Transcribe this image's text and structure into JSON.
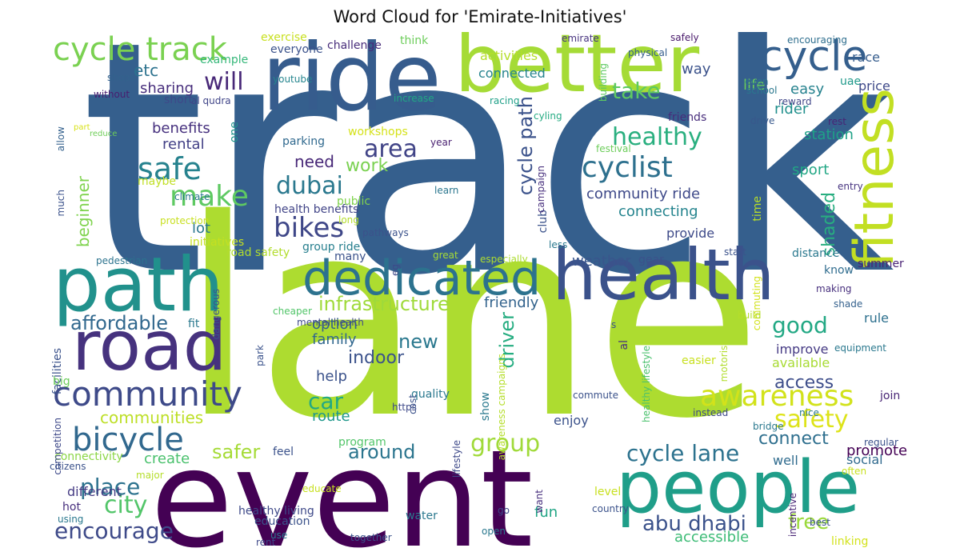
{
  "title": "Word Cloud for 'Emirate-Initiatives'",
  "words": [
    {
      "text": "track",
      "color": "#355f8d"
    },
    {
      "text": "lane",
      "color": "#addc30"
    },
    {
      "text": "event",
      "color": "#440154"
    },
    {
      "text": "ride",
      "color": "#365c8d"
    },
    {
      "text": "better",
      "color": "#a5db36"
    },
    {
      "text": "path",
      "color": "#21918c"
    },
    {
      "text": "health",
      "color": "#3b528b"
    },
    {
      "text": "road",
      "color": "#46327e"
    },
    {
      "text": "people",
      "color": "#1f9e89"
    },
    {
      "text": "fitness",
      "color": "#c2df23"
    },
    {
      "text": "dedicated",
      "color": "#2c728e"
    },
    {
      "text": "cycle",
      "color": "#355f8d"
    },
    {
      "text": "cycle track",
      "color": "#7ad151"
    },
    {
      "text": "community",
      "color": "#3e4a89"
    },
    {
      "text": "bicycle",
      "color": "#31688e"
    },
    {
      "text": "awareness",
      "color": "#d2e21b"
    },
    {
      "text": "safe",
      "color": "#26828e"
    },
    {
      "text": "make",
      "color": "#5ec962"
    },
    {
      "text": "bikes",
      "color": "#3f4788"
    },
    {
      "text": "cyclist",
      "color": "#2d708e"
    },
    {
      "text": "area",
      "color": "#414487"
    },
    {
      "text": "healthy",
      "color": "#29af7f"
    },
    {
      "text": "dubai",
      "color": "#2a788e"
    },
    {
      "text": "will",
      "color": "#482878"
    },
    {
      "text": "take",
      "color": "#5ec962"
    },
    {
      "text": "safety",
      "color": "#dde318"
    },
    {
      "text": "city",
      "color": "#52c569"
    },
    {
      "text": "group",
      "color": "#a0da39"
    },
    {
      "text": "place",
      "color": "#2c728e"
    },
    {
      "text": "encourage",
      "color": "#3e4a89"
    },
    {
      "text": "cycle lane",
      "color": "#2c728e"
    },
    {
      "text": "abu dhabi",
      "color": "#3b528b"
    },
    {
      "text": "free",
      "color": "#9bd93c"
    },
    {
      "text": "good",
      "color": "#22a884"
    },
    {
      "text": "cycle path",
      "color": "#3b528b"
    },
    {
      "text": "infrastructure",
      "color": "#9fda3a"
    },
    {
      "text": "car",
      "color": "#23a983"
    },
    {
      "text": "affordable",
      "color": "#31688e"
    },
    {
      "text": "communities",
      "color": "#bddf26"
    },
    {
      "text": "safer",
      "color": "#a5db36"
    },
    {
      "text": "around",
      "color": "#2b758e"
    },
    {
      "text": "new",
      "color": "#2a788e"
    },
    {
      "text": "driver",
      "color": "#26ad81"
    },
    {
      "text": "indoor",
      "color": "#3b528b"
    },
    {
      "text": "work",
      "color": "#7ad151"
    },
    {
      "text": "need",
      "color": "#482878"
    },
    {
      "text": "etc",
      "color": "#2c728e"
    },
    {
      "text": "beginner",
      "color": "#7fd34e"
    },
    {
      "text": "shaded",
      "color": "#28ae80"
    },
    {
      "text": "connect",
      "color": "#2e6f8e"
    },
    {
      "text": "access",
      "color": "#3d4d8a"
    },
    {
      "text": "community ride",
      "color": "#3e4989"
    },
    {
      "text": "connecting",
      "color": "#25848e"
    },
    {
      "text": "sport",
      "color": "#22a785"
    },
    {
      "text": "station",
      "color": "#1fa187"
    },
    {
      "text": "weather",
      "color": "#39558c"
    },
    {
      "text": "friendly",
      "color": "#33638d"
    },
    {
      "text": "rental",
      "color": "#424086"
    },
    {
      "text": "benefits",
      "color": "#46307e"
    },
    {
      "text": "sharing",
      "color": "#472e7c"
    },
    {
      "text": "lot",
      "color": "#2a778e"
    },
    {
      "text": "route",
      "color": "#1f978b"
    },
    {
      "text": "option",
      "color": "#34608d"
    },
    {
      "text": "family",
      "color": "#31678e"
    },
    {
      "text": "help",
      "color": "#3b528b"
    },
    {
      "text": "fun",
      "color": "#21a585"
    },
    {
      "text": "accessible",
      "color": "#3bbb75"
    },
    {
      "text": "create",
      "color": "#4ac16d"
    },
    {
      "text": "connectivity",
      "color": "#8bd646"
    },
    {
      "text": "different",
      "color": "#443a83"
    },
    {
      "text": "enjoy",
      "color": "#3b528b"
    },
    {
      "text": "well",
      "color": "#2f6b8e"
    },
    {
      "text": "promote",
      "color": "#440154"
    },
    {
      "text": "social",
      "color": "#306a8e"
    },
    {
      "text": "way",
      "color": "#3b528b"
    },
    {
      "text": "life",
      "color": "#6ccd5a"
    },
    {
      "text": "easy",
      "color": "#26828e"
    },
    {
      "text": "rider",
      "color": "#21908d"
    },
    {
      "text": "price",
      "color": "#3e4989"
    },
    {
      "text": "uae",
      "color": "#1f998a"
    },
    {
      "text": "race",
      "color": "#365d8d"
    },
    {
      "text": "provide",
      "color": "#3e4a89"
    },
    {
      "text": "rule",
      "color": "#2d708e"
    },
    {
      "text": "improve",
      "color": "#443983"
    },
    {
      "text": "available",
      "color": "#a8db34"
    },
    {
      "text": "join",
      "color": "#482475"
    },
    {
      "text": "know",
      "color": "#2f6c8e"
    },
    {
      "text": "summer",
      "color": "#482173"
    },
    {
      "text": "connected",
      "color": "#25838e"
    },
    {
      "text": "activities",
      "color": "#b5de2b"
    },
    {
      "text": "exercise",
      "color": "#c8e020"
    },
    {
      "text": "one",
      "color": "#20928c"
    },
    {
      "text": "maybe",
      "color": "#c0df25"
    },
    {
      "text": "health benefits",
      "color": "#414487"
    },
    {
      "text": "group ride",
      "color": "#277f8e"
    },
    {
      "text": "road safety",
      "color": "#b2dd2d"
    },
    {
      "text": "initiatives",
      "color": "#c5e021"
    },
    {
      "text": "public",
      "color": "#81d34d"
    },
    {
      "text": "club",
      "color": "#3b528b"
    },
    {
      "text": "time",
      "color": "#b8de29"
    },
    {
      "text": "friends",
      "color": "#472d7b"
    },
    {
      "text": "parking",
      "color": "#30698e"
    },
    {
      "text": "workshops",
      "color": "#d5e21a"
    },
    {
      "text": "challenge",
      "color": "#472c7a"
    },
    {
      "text": "think",
      "color": "#6ccd5a"
    },
    {
      "text": "example",
      "color": "#35b779"
    },
    {
      "text": "everyone",
      "color": "#3b528b"
    },
    {
      "text": "emirate",
      "color": "#46327e"
    },
    {
      "text": "safely",
      "color": "#48186a"
    },
    {
      "text": "encouraging",
      "color": "#2e6e8e"
    },
    {
      "text": "physical",
      "color": "#355e8d"
    },
    {
      "text": "short",
      "color": "#3e4989"
    },
    {
      "text": "al qudra",
      "color": "#404588"
    },
    {
      "text": "without",
      "color": "#481d6f"
    },
    {
      "text": "shops",
      "color": "#33628d"
    },
    {
      "text": "racing",
      "color": "#1fa088"
    },
    {
      "text": "cyling",
      "color": "#25ab82"
    },
    {
      "text": "even",
      "color": "#2d718e"
    },
    {
      "text": "school",
      "color": "#2a788e"
    },
    {
      "text": "youtube",
      "color": "#25858e"
    },
    {
      "text": "increase",
      "color": "#22a785"
    },
    {
      "text": "building",
      "color": "#5ec962"
    },
    {
      "text": "many",
      "color": "#3b528b"
    },
    {
      "text": "great",
      "color": "#a5db36"
    },
    {
      "text": "especially",
      "color": "#addc30"
    },
    {
      "text": "gear",
      "color": "#3b528b"
    },
    {
      "text": "less",
      "color": "#2a788e"
    },
    {
      "text": "rest",
      "color": "#482475"
    },
    {
      "text": "drive",
      "color": "#38588c"
    },
    {
      "text": "reward",
      "color": "#404688"
    },
    {
      "text": "year",
      "color": "#481f70"
    },
    {
      "text": "festival",
      "color": "#6ccd5a"
    },
    {
      "text": "campaign",
      "color": "#472f7d"
    },
    {
      "text": "entry",
      "color": "#46337f"
    },
    {
      "text": "learn",
      "color": "#2a768e"
    },
    {
      "text": "pathways",
      "color": "#3b528b"
    },
    {
      "text": "long",
      "color": "#b5de2b"
    },
    {
      "text": "protection",
      "color": "#c8e020"
    },
    {
      "text": "climate",
      "color": "#2a788e"
    },
    {
      "text": "much",
      "color": "#3b528b"
    },
    {
      "text": "pedestrian",
      "color": "#2c738e"
    },
    {
      "text": "allow",
      "color": "#34618d"
    },
    {
      "text": "part",
      "color": "#d8e219"
    },
    {
      "text": "reduce",
      "color": "#6ece58"
    },
    {
      "text": "eg",
      "color": "#3e4a89"
    },
    {
      "text": "start",
      "color": "#3b528b"
    },
    {
      "text": "distance",
      "color": "#2a788e"
    },
    {
      "text": "commuting",
      "color": "#d2e21b"
    },
    {
      "text": "making",
      "color": "#472f7d"
    },
    {
      "text": "shade",
      "color": "#34618d"
    },
    {
      "text": "build",
      "color": "#b5de2b"
    },
    {
      "text": "dangerous",
      "color": "#3b528b"
    },
    {
      "text": "fit",
      "color": "#2a788e"
    },
    {
      "text": "cheaper",
      "color": "#52c569"
    },
    {
      "text": "mental health",
      "color": "#3e4989"
    },
    {
      "text": "s",
      "color": "#3b528b"
    },
    {
      "text": "equipment",
      "color": "#2a788e"
    },
    {
      "text": "easier",
      "color": "#c8e020"
    },
    {
      "text": "motorist",
      "color": "#b2dd2d"
    },
    {
      "text": "al",
      "color": "#472f7d"
    },
    {
      "text": "healthy lifestyle",
      "color": "#4ac16d"
    },
    {
      "text": "awareness campaigns",
      "color": "#b5de2b"
    },
    {
      "text": "commute",
      "color": "#3b528b"
    },
    {
      "text": "nice",
      "color": "#2a788e"
    },
    {
      "text": "instead",
      "color": "#3e4989"
    },
    {
      "text": "bridge",
      "color": "#2a788e"
    },
    {
      "text": "regular",
      "color": "#3b528b"
    },
    {
      "text": "often",
      "color": "#c8e020"
    },
    {
      "text": "best",
      "color": "#3b528b"
    },
    {
      "text": "incentive",
      "color": "#482475"
    },
    {
      "text": "linking",
      "color": "#d2e21b"
    },
    {
      "text": "facilities",
      "color": "#3b528b"
    },
    {
      "text": "park",
      "color": "#3b528b"
    },
    {
      "text": "big",
      "color": "#6ccd5a"
    },
    {
      "text": "competition",
      "color": "#3e4989"
    },
    {
      "text": "citizens",
      "color": "#3b528b"
    },
    {
      "text": "major",
      "color": "#b5de2b"
    },
    {
      "text": "quality",
      "color": "#2a788e"
    },
    {
      "text": "https",
      "color": "#3e4989"
    },
    {
      "text": "cost",
      "color": "#3b528b"
    },
    {
      "text": "show",
      "color": "#2a788e"
    },
    {
      "text": "program",
      "color": "#52c569"
    },
    {
      "text": "feel",
      "color": "#3b528b"
    },
    {
      "text": "lifestyle",
      "color": "#3e4989"
    },
    {
      "text": "educate",
      "color": "#c8e020"
    },
    {
      "text": "hot",
      "color": "#472f7d"
    },
    {
      "text": "using",
      "color": "#2a788e"
    },
    {
      "text": "healthy living",
      "color": "#3e4989"
    },
    {
      "text": "education",
      "color": "#3b528b"
    },
    {
      "text": "use",
      "color": "#2a788e"
    },
    {
      "text": "rent",
      "color": "#3e4989"
    },
    {
      "text": "water",
      "color": "#2a788e"
    },
    {
      "text": "together",
      "color": "#3b528b"
    },
    {
      "text": "want",
      "color": "#472f7d"
    },
    {
      "text": "level",
      "color": "#c8e020"
    },
    {
      "text": "go",
      "color": "#3e4989"
    },
    {
      "text": "country",
      "color": "#3b528b"
    },
    {
      "text": "open",
      "color": "#2a788e"
    },
    {
      "text": "meydan",
      "color": "#472f7d"
    }
  ]
}
